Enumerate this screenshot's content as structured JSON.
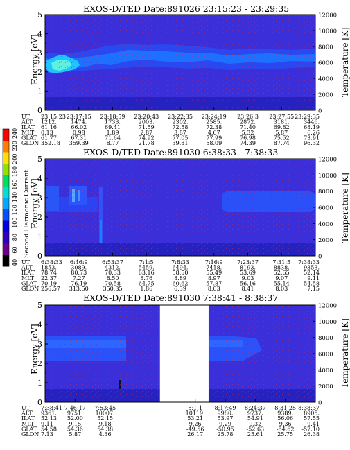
{
  "cbar": {
    "title": "Second Harmonic Current",
    "ticks": [
      "40",
      "60",
      "80",
      "100",
      "120",
      "140",
      "160",
      "180",
      "200",
      "220",
      "240"
    ],
    "colors": [
      "#000000",
      "#6a0090",
      "#3000c0",
      "#0000e0",
      "#0050ff",
      "#00a8ff",
      "#00e0d0",
      "#00e060",
      "#90e000",
      "#ffe000",
      "#ff8000",
      "#ff0000"
    ]
  },
  "chart_data": [
    {
      "type": "heatmap",
      "title": "EXOS-D/TED   Date:891026  23:15:23 - 23:29:35",
      "ylabel": "Energy [eV]",
      "y2label": "Temperature [K]",
      "ylim": [
        0,
        5
      ],
      "y2lim": [
        0,
        12000
      ],
      "yticks": [
        "0",
        "1",
        "2",
        "3",
        "4",
        "5"
      ],
      "y2ticks": [
        "0",
        "2000",
        "4000",
        "6000",
        "8000",
        "10000",
        "12000"
      ],
      "gaps": [],
      "columns": {
        "UT": [
          "23:15:23",
          "23:17:15",
          "23:18:59",
          "23:20:43",
          "23:22:35",
          "23:24:19",
          "23:26:3",
          "23:27:55",
          "23:29:35"
        ],
        "ALT": [
          "1212.",
          "1474.",
          "1733.",
          "2003.",
          "2302.",
          "2585.",
          "2872.",
          "3181.",
          "3446."
        ],
        "ILAT": [
          "61.16",
          "66.02",
          "69.41",
          "71.59",
          "72.58",
          "72.38",
          "71.40",
          "69.82",
          "68.19"
        ],
        "MLT": [
          "0.13",
          "0.98",
          "1.89",
          "2.87",
          "3.87",
          "4.67",
          "5.32",
          "5.87",
          "6.26"
        ],
        "GLAT": [
          "61.77",
          "67.31",
          "71.64",
          "74.92",
          "77.05",
          "77.99",
          "76.98",
          "75.52",
          "73.91"
        ],
        "GLON": [
          "352.18",
          "359.39",
          "8.77",
          "21.78",
          "39.81",
          "58.09",
          "74.39",
          "87.74",
          "96.32"
        ]
      }
    },
    {
      "type": "heatmap",
      "title": "EXOS-D/TED   Date:891030  6:38:33 - 7:38:33",
      "ylabel": "Energy [eV]",
      "y2label": "Temperature [K]",
      "ylim": [
        0,
        5
      ],
      "y2lim": [
        0,
        12000
      ],
      "yticks": [
        "0",
        "1",
        "2",
        "3",
        "4",
        "5"
      ],
      "y2ticks": [
        "0",
        "2000",
        "4000",
        "6000",
        "8000",
        "10000",
        "12000"
      ],
      "gaps": [],
      "columns": {
        "UT": [
          "6:38:33",
          "6:46:9",
          "6:53:37",
          "7:1:5",
          "7:8:33",
          "7:16:9",
          "7:23:37",
          "7:31:5",
          "7:38:33"
        ],
        "ALT": [
          "1853.",
          "3089.",
          "4312.",
          "5459.",
          "6494.",
          "7418.",
          "8193.",
          "8838.",
          "9353."
        ],
        "ILAT": [
          "78.74",
          "80.73",
          "70.33",
          "63.16",
          "58.50",
          "55.49",
          "53.69",
          "52.65",
          "52.14"
        ],
        "MLT": [
          "22.37",
          "7.27",
          "8.50",
          "8.76",
          "8.89",
          "8.97",
          "9.03",
          "9.07",
          "9.11"
        ],
        "GLAT": [
          "70.19",
          "76.19",
          "70.58",
          "64.75",
          "60.62",
          "57.87",
          "56.16",
          "55.14",
          "54.58"
        ],
        "GLON": [
          "256.57",
          "313.50",
          "350.35",
          "1.86",
          "6.39",
          "8.03",
          "8.41",
          "8.03",
          "7.15"
        ]
      }
    },
    {
      "type": "heatmap",
      "title": "EXOS-D/TED   Date:891030  7:38:41 - 8:38:37",
      "ylabel": "Energy [eV]",
      "y2label": "Temperature [K]",
      "ylim": [
        0,
        5
      ],
      "y2lim": [
        0,
        12000
      ],
      "yticks": [
        "0",
        "1",
        "2",
        "3",
        "4",
        "5"
      ],
      "y2ticks": [
        "0",
        "2000",
        "4000",
        "6000",
        "8000",
        "10000",
        "12000"
      ],
      "gaps": [
        [
          0.425,
          0.605
        ]
      ],
      "columns": {
        "UT": [
          "7:38:41",
          "7:46:17",
          "7:53:45",
          "",
          "",
          "8:1:1",
          "8:17:49",
          "8:24:37",
          "8:31:25",
          "8:38:37"
        ],
        "ALT": [
          "9361.",
          "9751.",
          "10007.",
          "",
          "",
          "10119.",
          "9980.",
          "9737.",
          "9389.",
          "8905."
        ],
        "ILAT": [
          "52.13",
          "52.00",
          "52.15",
          "",
          "",
          "53.21",
          "53.97",
          "54.91",
          "56.06",
          "57.55"
        ],
        "MLT": [
          "9.11",
          "9.15",
          "9.18",
          "",
          "",
          "9.26",
          "9.29",
          "9.32",
          "9.36",
          "9.41"
        ],
        "GLAT": [
          "54.58",
          "54.36",
          "54.38",
          "",
          "",
          "-49.56",
          "-50.95",
          "-52.63",
          "-54.62",
          "-57.10"
        ],
        "GLON": [
          "7.13",
          "5.87",
          "4.36",
          "",
          "",
          "26.17",
          "25.78",
          "25.61",
          "25.75",
          "26.38"
        ]
      }
    }
  ]
}
